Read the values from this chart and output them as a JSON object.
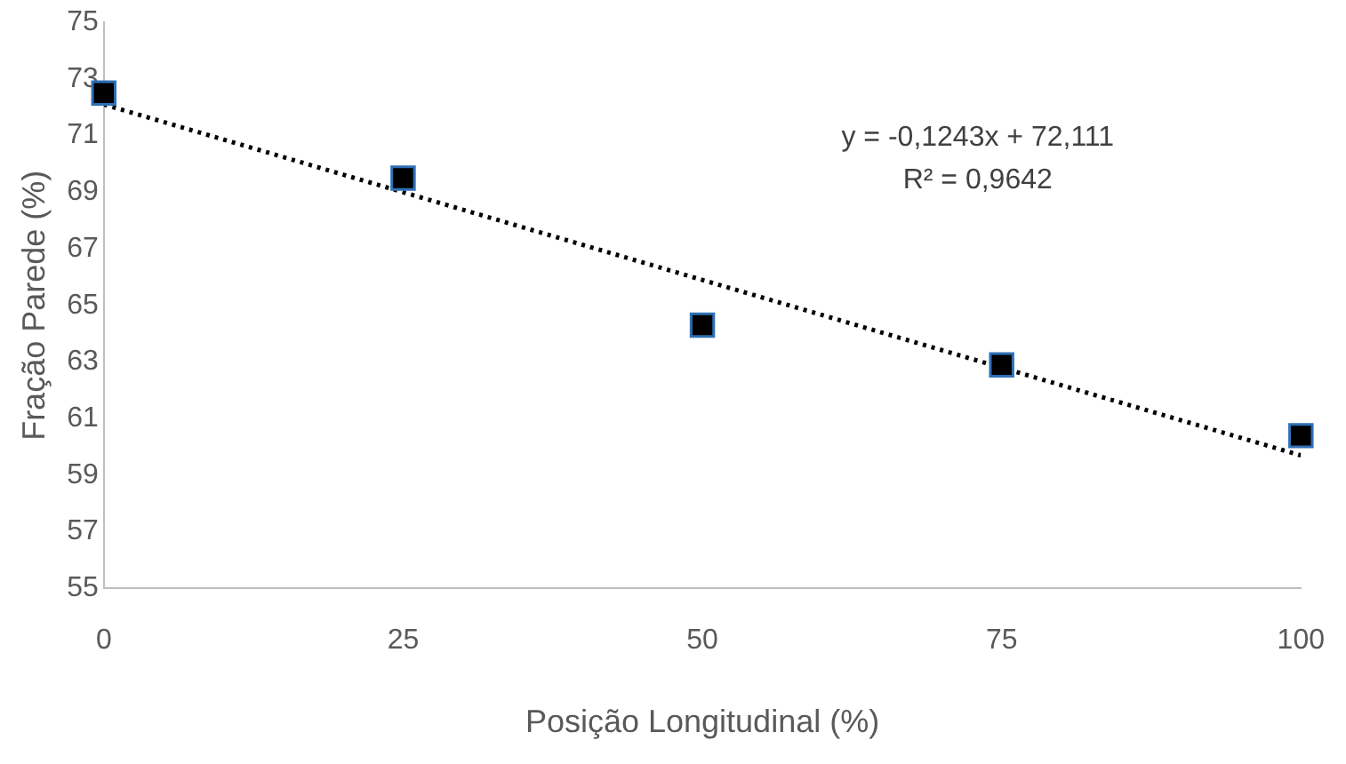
{
  "chart_data": {
    "type": "scatter",
    "xlabel": "Posição Longitudinal (%)",
    "ylabel": "Fração Parede (%)",
    "x": [
      0,
      25,
      50,
      75,
      100
    ],
    "series": [
      {
        "color": "#000000",
        "marker": "square",
        "values": [
          72.5,
          69.5,
          64.3,
          62.9,
          60.4
        ]
      },
      {
        "type": "line",
        "color": "#000000",
        "line_style": "dotted",
        "marker": "none",
        "x": [
          0,
          100
        ],
        "values": [
          72.1,
          59.7
        ]
      }
    ],
    "xlim": [
      0,
      100
    ],
    "xticks": [
      0,
      25,
      50,
      75,
      100
    ],
    "ylim": [
      55,
      75
    ],
    "yticks": [
      55,
      57,
      59,
      61,
      63,
      65,
      67,
      69,
      71,
      73,
      75
    ],
    "grid": false,
    "legend": false,
    "annotations": [
      "y = -0,1243x + 72,111",
      "R² = 0,9642"
    ]
  }
}
